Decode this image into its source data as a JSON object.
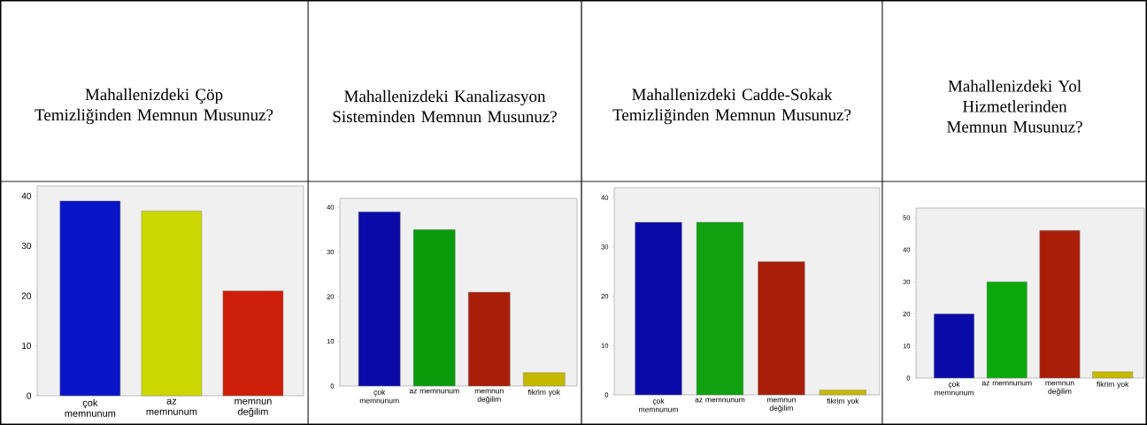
{
  "chart_data": [
    {
      "type": "bar",
      "title": "Mahallenizdeki Çöp Temizliğinden Memnun Musunuz?",
      "categories": [
        "çok memnunum",
        "az memnunum",
        "memnun değilim"
      ],
      "values": [
        39,
        37,
        21
      ],
      "colors": [
        "#0a14c8",
        "#ccd600",
        "#cc1e08"
      ],
      "ylim": [
        0,
        42
      ],
      "yticks": [
        0,
        10,
        20,
        30,
        40
      ]
    },
    {
      "type": "bar",
      "title": "Mahallenizdeki Kanalizasyon Sisteminden Memnun Musunuz?",
      "categories": [
        "çok memnunum",
        "az memnunum",
        "memnun değilim",
        "fikrim yok"
      ],
      "values": [
        39,
        35,
        21,
        3
      ],
      "colors": [
        "#0a0aa8",
        "#0a9a0a",
        "#a81e08",
        "#c4b800"
      ],
      "ylim": [
        0,
        42
      ],
      "yticks": [
        0,
        10,
        20,
        30,
        40
      ]
    },
    {
      "type": "bar",
      "title": "Mahallenizdeki Cadde-Sokak Temizliğinden Memnun Musunuz?",
      "categories": [
        "çok memnunum",
        "az memnunum",
        "memnun değilim",
        "fikrim yok"
      ],
      "values": [
        35,
        35,
        27,
        1
      ],
      "colors": [
        "#0a0aa8",
        "#10a010",
        "#a81e08",
        "#c4b800"
      ],
      "ylim": [
        0,
        42
      ],
      "yticks": [
        0,
        10,
        20,
        30,
        40
      ]
    },
    {
      "type": "bar",
      "title": "Mahallenizdeki Yol Hizmetlerinden Memnun Musunuz?",
      "categories": [
        "çok memnunum",
        "az memnunum",
        "memnun değilim",
        "fikrim yok"
      ],
      "values": [
        20,
        30,
        46,
        2
      ],
      "colors": [
        "#0a0aa8",
        "#0aa80a",
        "#a81e08",
        "#c4b800"
      ],
      "ylim": [
        0,
        53
      ],
      "yticks": [
        0,
        10,
        20,
        30,
        40,
        50
      ]
    }
  ]
}
